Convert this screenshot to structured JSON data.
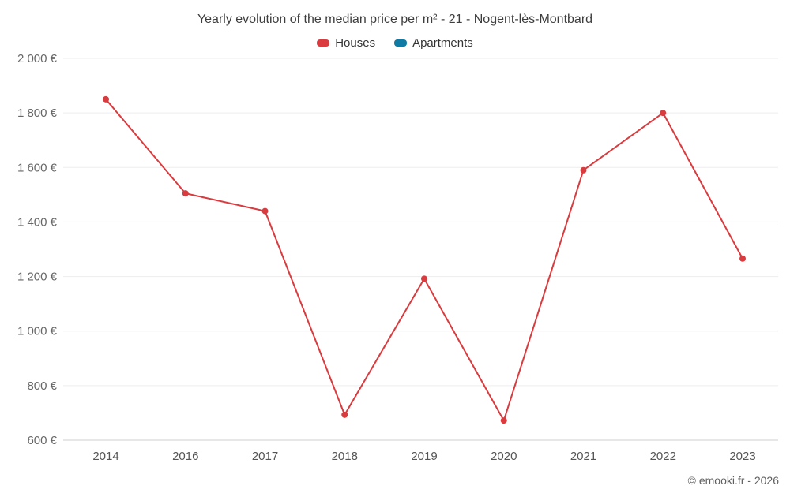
{
  "chart_data": {
    "type": "line",
    "title": "Yearly evolution of the median price per m² - 21 - Nogent-lès-Montbard",
    "categories": [
      "2014",
      "2016",
      "2017",
      "2018",
      "2019",
      "2020",
      "2021",
      "2022",
      "2023"
    ],
    "series": [
      {
        "name": "Houses",
        "color": "#d93b3e",
        "values": [
          1850,
          1505,
          1440,
          693,
          1192,
          672,
          1590,
          1800,
          1266
        ]
      },
      {
        "name": "Apartments",
        "color": "#0f7ba4",
        "values": []
      }
    ],
    "y_axis": {
      "min": 600,
      "max": 2000,
      "step": 200,
      "tick_labels": [
        "600 €",
        "800 €",
        "1 000 €",
        "1 200 €",
        "1 400 €",
        "1 600 €",
        "1 800 €",
        "2 000 €"
      ]
    },
    "xlabel": "",
    "ylabel": "",
    "grid": "horizontal",
    "legend_position": "top"
  },
  "footer": {
    "copyright": "© emooki.fr - 2026"
  }
}
